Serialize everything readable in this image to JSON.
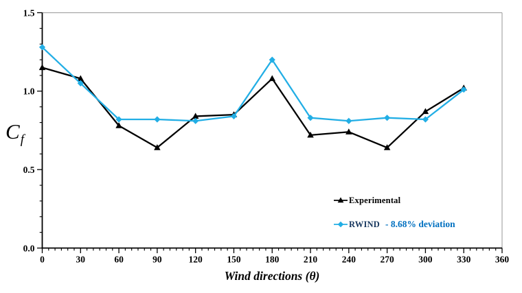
{
  "chart_data": {
    "type": "line",
    "title": "",
    "xlabel": "Wind directions (θ)",
    "ylabel_main": "C",
    "ylabel_sub": "f",
    "xlim": [
      0,
      360
    ],
    "ylim": [
      0,
      1.5
    ],
    "x_major_tick_step": 30,
    "x_minor_tick_step": 5,
    "y_major_tick_step": 0.5,
    "y_minor_tick_step": 0.1,
    "x_tick_labels": [
      "0",
      "30",
      "60",
      "90",
      "120",
      "150",
      "180",
      "210",
      "240",
      "270",
      "300",
      "330",
      "360"
    ],
    "y_tick_labels": [
      "0.0",
      "0.5",
      "1.0",
      "1.5"
    ],
    "grid": false,
    "legend_position": "inside-right",
    "axis_color": "#000000",
    "frame_color": "#a6a6a6",
    "x": [
      0,
      30,
      60,
      90,
      120,
      150,
      180,
      210,
      240,
      270,
      300,
      330
    ],
    "series": [
      {
        "name": "Experimental",
        "marker": "triangle",
        "color": "#000000",
        "label_color": "#000000",
        "values": [
          1.15,
          1.08,
          0.78,
          0.64,
          0.84,
          0.85,
          1.08,
          0.72,
          0.74,
          0.64,
          0.87,
          1.02
        ]
      },
      {
        "name": "RWIND",
        "marker": "diamond",
        "color": "#22aee5",
        "label_color": "#17375e",
        "annotation": "- 8.68% deviation",
        "annotation_color": "#0070c0",
        "values": [
          1.28,
          1.05,
          0.82,
          0.82,
          0.81,
          0.84,
          1.2,
          0.83,
          0.81,
          0.83,
          0.82,
          1.01
        ]
      }
    ]
  }
}
